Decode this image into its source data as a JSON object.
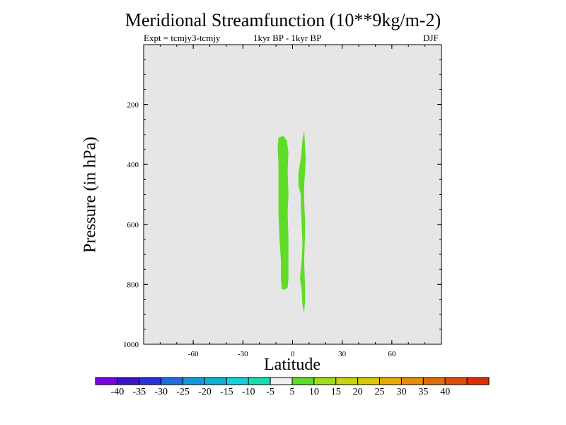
{
  "chart_data": {
    "type": "heatmap",
    "title": "Meridional Streamfunction (10**9kg/m-2)",
    "subtitles": {
      "left": "Expt = tcmjy3-tcmjy",
      "center": "1kyr BP - 1kyr BP",
      "right": "DJF"
    },
    "xlabel": "Latitude",
    "ylabel": "Pressure (in hPa)",
    "xlim": [
      -90,
      90
    ],
    "ylim": [
      1000,
      0
    ],
    "xticks": [
      -60,
      -30,
      0,
      30,
      60
    ],
    "xtick_labels": [
      "-60",
      "-30",
      "0",
      "30",
      "60"
    ],
    "yticks": [
      200,
      400,
      600,
      800,
      1000
    ],
    "ytick_labels": [
      "200",
      "400",
      "600",
      "800",
      "1000"
    ],
    "background_color": "#e6e6e6",
    "regions": [
      {
        "name": "",
        "level": "5 to 10",
        "color": "#5fdc28",
        "points": [
          [
            -8.5,
            310
          ],
          [
            -5.5,
            305
          ],
          [
            -3.5,
            320
          ],
          [
            -2.5,
            360
          ],
          [
            -3,
            420
          ],
          [
            -2.5,
            500
          ],
          [
            -3,
            560
          ],
          [
            -2.5,
            650
          ],
          [
            -2.5,
            720
          ],
          [
            -2.5,
            780
          ],
          [
            -3,
            812
          ],
          [
            -5,
            818
          ],
          [
            -6.5,
            815
          ],
          [
            -7,
            780
          ],
          [
            -7,
            720
          ],
          [
            -8,
            640
          ],
          [
            -8.5,
            560
          ],
          [
            -8.5,
            480
          ],
          [
            -8.5,
            400
          ],
          [
            -9,
            340
          ]
        ]
      },
      {
        "name": "",
        "level": "5 to 10",
        "color": "#5fdc28",
        "points": [
          [
            7,
            285
          ],
          [
            7.5,
            330
          ],
          [
            8,
            380
          ],
          [
            7.5,
            430
          ],
          [
            7,
            470
          ],
          [
            7,
            520
          ],
          [
            7.5,
            580
          ],
          [
            7.5,
            640
          ],
          [
            7,
            720
          ],
          [
            7.5,
            800
          ],
          [
            7.5,
            860
          ],
          [
            7,
            895
          ],
          [
            6,
            870
          ],
          [
            5.5,
            820
          ],
          [
            4.5,
            780
          ],
          [
            5.5,
            720
          ],
          [
            6,
            660
          ],
          [
            5.5,
            600
          ],
          [
            5,
            540
          ],
          [
            5,
            500
          ],
          [
            3.5,
            470
          ],
          [
            3.5,
            430
          ],
          [
            5,
            380
          ],
          [
            6,
            320
          ]
        ]
      }
    ],
    "colorbar": {
      "colors": [
        "#7a00dc",
        "#3c14c8",
        "#2832dc",
        "#1e6edc",
        "#1496dc",
        "#0ab4d2",
        "#14d2dc",
        "#14dcb4",
        "#f0f0f0",
        "#5fdc28",
        "#a0dc1e",
        "#c8d214",
        "#dcc80a",
        "#e6aa0a",
        "#e68c0a",
        "#dc6e0a",
        "#dc4e0a",
        "#dc2e00"
      ],
      "labels": [
        "-40",
        "-35",
        "-30",
        "-25",
        "-20",
        "-15",
        "-10",
        "-5",
        "5",
        "10",
        "15",
        "20",
        "25",
        "30",
        "35",
        "40"
      ]
    }
  }
}
